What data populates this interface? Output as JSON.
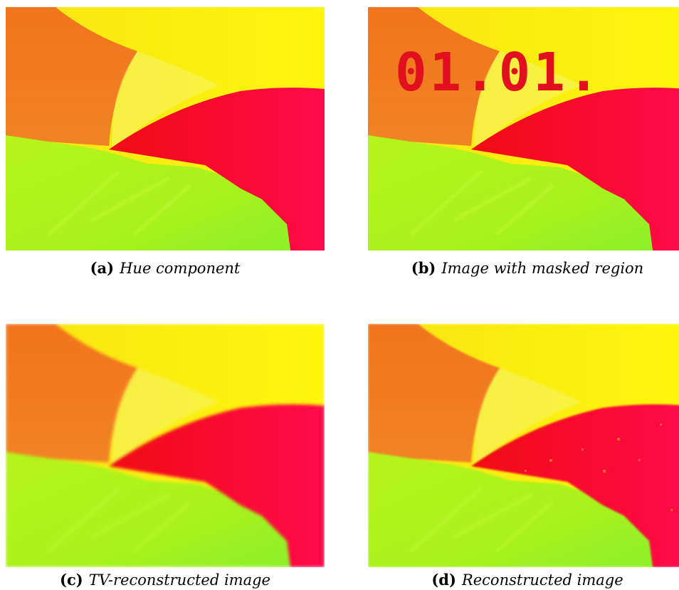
{
  "figures": [
    {
      "id": "a",
      "label": "(a)",
      "caption": "Hue component"
    },
    {
      "id": "b",
      "label": "(b)",
      "caption": "Image with masked region"
    },
    {
      "id": "c",
      "label": "(c)",
      "caption": "TV-reconstructed image"
    },
    {
      "id": "d",
      "label": "(d)",
      "caption": "Reconstructed image"
    }
  ],
  "mask": {
    "text": "01.01."
  },
  "colors": {
    "orange": "#f0781e",
    "yellow": "#fcf20c",
    "red": "#ee0c1e",
    "green": "#b4f416",
    "mask_red": "#e2101e"
  }
}
